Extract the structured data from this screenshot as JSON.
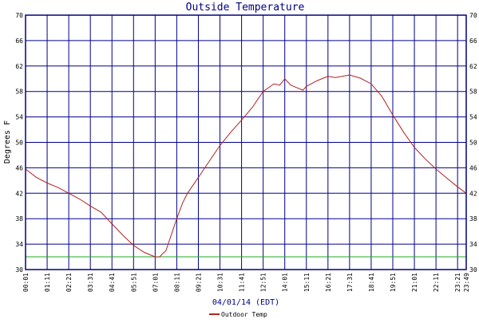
{
  "colors": {
    "grid": "#00008b",
    "frame": "#000080",
    "series": "#b22222",
    "reference": "#22aa22",
    "background": "#ffffff"
  },
  "chart_data": {
    "type": "line",
    "title": "Outside Temperature",
    "xlabel": "04/01/14 (EDT)",
    "ylabel": "Degrees F",
    "ylim": [
      30,
      70
    ],
    "yticks": [
      30,
      34,
      38,
      42,
      46,
      50,
      54,
      58,
      62,
      66,
      70
    ],
    "xlim": [
      "00:01",
      "23:49"
    ],
    "xticks": [
      "00:01",
      "01:11",
      "02:21",
      "03:31",
      "04:41",
      "05:51",
      "07:01",
      "08:11",
      "09:21",
      "10:31",
      "11:41",
      "12:51",
      "14:01",
      "15:11",
      "16:21",
      "17:31",
      "18:41",
      "19:51",
      "21:01",
      "22:11",
      "23:21",
      "23:49"
    ],
    "grid": true,
    "legend_position": "bottom-center",
    "reference_line": {
      "y": 32
    },
    "series": [
      {
        "name": "Outdoor Temp",
        "x": [
          "00:01",
          "00:36",
          "01:11",
          "01:46",
          "02:21",
          "02:56",
          "03:31",
          "04:06",
          "04:41",
          "05:16",
          "05:51",
          "06:26",
          "07:01",
          "07:15",
          "07:36",
          "07:50",
          "08:11",
          "08:30",
          "08:46",
          "09:21",
          "09:56",
          "10:31",
          "11:06",
          "11:41",
          "12:16",
          "12:51",
          "13:26",
          "13:45",
          "14:01",
          "14:20",
          "14:40",
          "15:00",
          "15:11",
          "15:46",
          "16:21",
          "16:45",
          "17:31",
          "18:06",
          "18:41",
          "19:16",
          "19:51",
          "20:26",
          "21:01",
          "21:36",
          "22:11",
          "22:46",
          "23:21",
          "23:49"
        ],
        "y": [
          45.8,
          44.5,
          43.6,
          42.9,
          42.0,
          41.1,
          40.0,
          39.0,
          37.2,
          35.4,
          33.8,
          32.7,
          32.0,
          32.0,
          33.0,
          35.0,
          38.0,
          40.5,
          42.0,
          44.5,
          47.0,
          49.5,
          51.6,
          53.5,
          55.5,
          58.0,
          59.2,
          59.0,
          60.0,
          59.0,
          58.6,
          58.2,
          58.8,
          59.7,
          60.4,
          60.2,
          60.6,
          60.1,
          59.2,
          57.2,
          54.3,
          51.6,
          49.2,
          47.4,
          45.8,
          44.4,
          43.0,
          42.0
        ]
      }
    ]
  }
}
